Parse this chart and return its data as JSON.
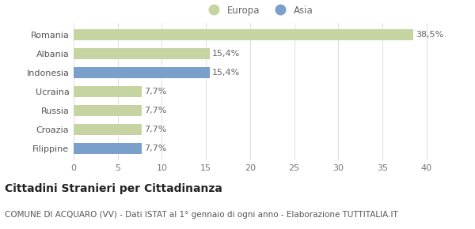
{
  "categories": [
    "Romania",
    "Albania",
    "Indonesia",
    "Ucraina",
    "Russia",
    "Croazia",
    "Filippine"
  ],
  "values": [
    38.5,
    15.4,
    15.4,
    7.7,
    7.7,
    7.7,
    7.7
  ],
  "labels": [
    "38,5%",
    "15,4%",
    "15,4%",
    "7,7%",
    "7,7%",
    "7,7%",
    "7,7%"
  ],
  "colors": [
    "#c5d4a0",
    "#c5d4a0",
    "#7a9fcb",
    "#c5d4a0",
    "#c5d4a0",
    "#c5d4a0",
    "#7a9fcb"
  ],
  "legend": [
    {
      "label": "Europa",
      "color": "#c5d4a0"
    },
    {
      "label": "Asia",
      "color": "#7a9fcb"
    }
  ],
  "xlim": [
    0,
    42
  ],
  "xticks": [
    0,
    5,
    10,
    15,
    20,
    25,
    30,
    35,
    40
  ],
  "title": "Cittadini Stranieri per Cittadinanza",
  "subtitle": "COMUNE DI ACQUARO (VV) - Dati ISTAT al 1° gennaio di ogni anno - Elaborazione TUTTITALIA.IT",
  "background_color": "#ffffff",
  "bar_height": 0.6,
  "label_fontsize": 8,
  "tick_fontsize": 8,
  "title_fontsize": 10,
  "subtitle_fontsize": 7.5
}
